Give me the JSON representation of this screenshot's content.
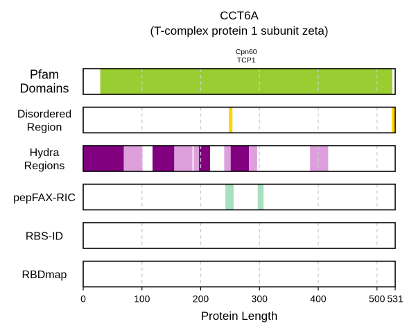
{
  "chart_data": {
    "type": "feature-tracks",
    "title": "CCT6A",
    "subtitle": "(T-complex protein 1 subunit zeta)",
    "xlabel": "Protein Length",
    "xlim": [
      0,
      531
    ],
    "xticks": [
      0,
      100,
      200,
      300,
      400,
      500,
      531
    ],
    "grid": "vertical dashed at 100, 200, 300, 400, 500",
    "colors": {
      "pfam": "#9acd32",
      "disordered": "#ffd700",
      "hydra_dark": "#800080",
      "hydra_light": "#dda0dd",
      "pepfax": "#a8e0c0",
      "grid": "#cccccc"
    },
    "tracks": [
      {
        "label_lines": [
          "Pfam",
          "Domains"
        ],
        "size": "big",
        "segments": [
          {
            "start": 29,
            "end": 526,
            "color": "#9acd32",
            "label_lines": [
              "Cpn60",
              "TCP1"
            ]
          }
        ]
      },
      {
        "label_lines": [
          "Disordered",
          "Region"
        ],
        "segments": [
          {
            "start": 248,
            "end": 254,
            "color": "#ffd700"
          },
          {
            "start": 525,
            "end": 531,
            "color": "#ffd700"
          }
        ]
      },
      {
        "label_lines": [
          "Hydra",
          "Regions"
        ],
        "segments": [
          {
            "start": 0,
            "end": 69,
            "color": "#800080"
          },
          {
            "start": 69,
            "end": 101,
            "color": "#dda0dd"
          },
          {
            "start": 118,
            "end": 155,
            "color": "#800080"
          },
          {
            "start": 155,
            "end": 186,
            "color": "#dda0dd"
          },
          {
            "start": 188,
            "end": 197,
            "color": "#dda0dd"
          },
          {
            "start": 197,
            "end": 216,
            "color": "#800080"
          },
          {
            "start": 240,
            "end": 251,
            "color": "#dda0dd"
          },
          {
            "start": 251,
            "end": 282,
            "color": "#800080"
          },
          {
            "start": 282,
            "end": 296,
            "color": "#dda0dd"
          },
          {
            "start": 386,
            "end": 417,
            "color": "#dda0dd"
          }
        ]
      },
      {
        "label_lines": [
          "pepFAX-RIC"
        ],
        "segments": [
          {
            "start": 242,
            "end": 256,
            "color": "#a8e0c0"
          },
          {
            "start": 297,
            "end": 307,
            "color": "#a8e0c0"
          }
        ]
      },
      {
        "label_lines": [
          "RBS-ID"
        ],
        "segments": []
      },
      {
        "label_lines": [
          "RBDmap"
        ],
        "segments": []
      }
    ]
  }
}
